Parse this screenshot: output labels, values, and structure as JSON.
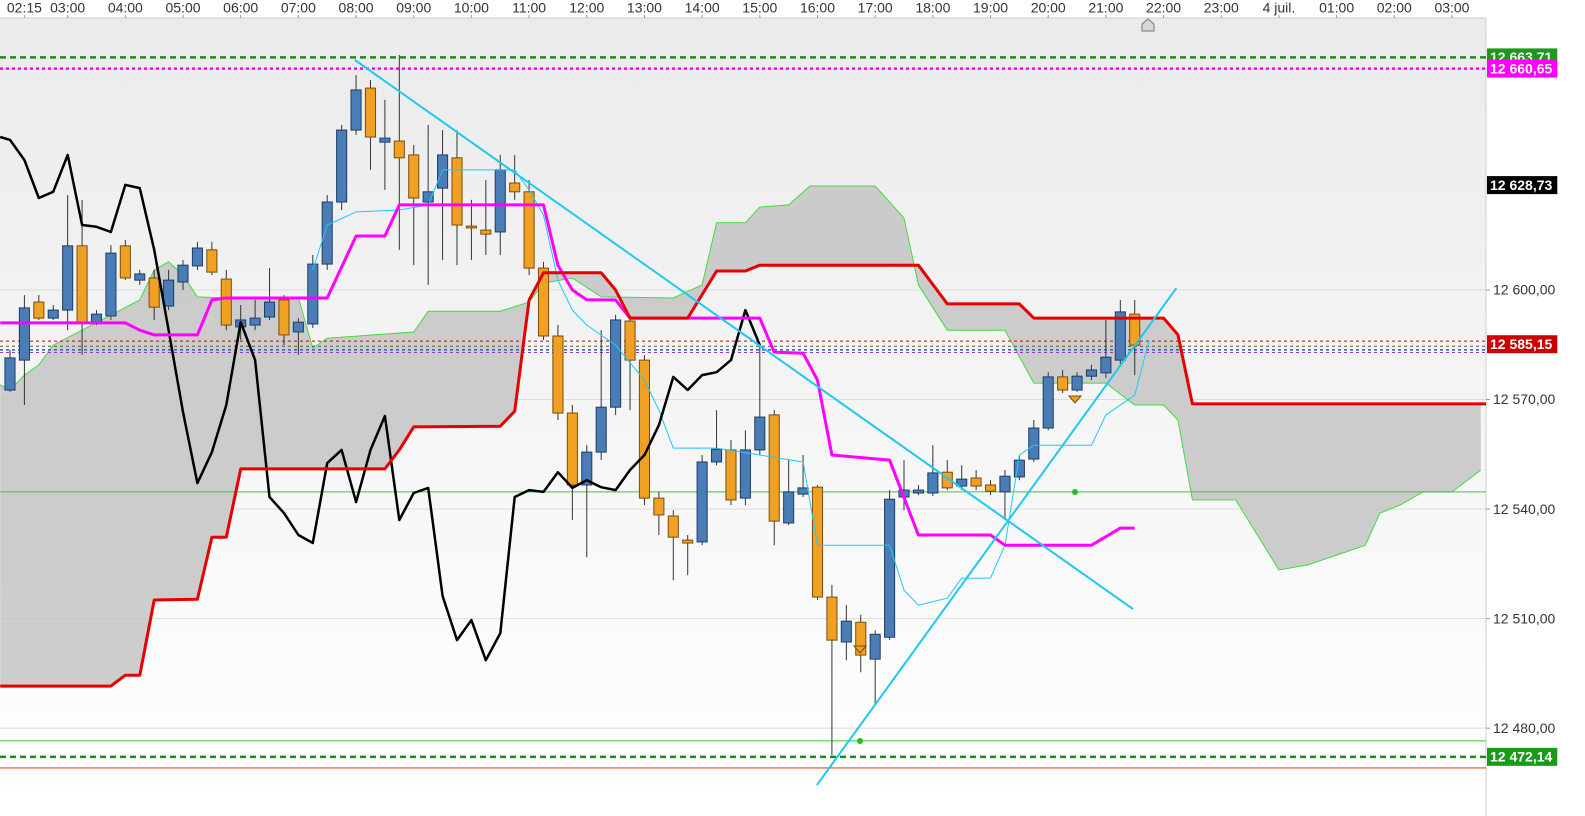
{
  "chart_data": {
    "type": "candlestick",
    "xlim": [
      1.827,
      27.59
    ],
    "ylim": [
      12458.4,
      12674.5
    ],
    "grid": true,
    "up_color": "#4a7db5",
    "down_color": "#f0a022",
    "up_outline": "#1e3d66",
    "down_outline": "#7a4e0c",
    "xticks": [
      {
        "value": 2.25,
        "label": "02:15"
      },
      {
        "value": 3,
        "label": "03:00"
      },
      {
        "value": 4,
        "label": "04:00"
      },
      {
        "value": 5,
        "label": "05:00"
      },
      {
        "value": 6,
        "label": "06:00"
      },
      {
        "value": 7,
        "label": "07:00"
      },
      {
        "value": 8,
        "label": "08:00"
      },
      {
        "value": 9,
        "label": "09:00"
      },
      {
        "value": 10,
        "label": "10:00"
      },
      {
        "value": 11,
        "label": "11:00"
      },
      {
        "value": 12,
        "label": "12:00"
      },
      {
        "value": 13,
        "label": "13:00"
      },
      {
        "value": 14,
        "label": "14:00"
      },
      {
        "value": 15,
        "label": "15:00"
      },
      {
        "value": 16,
        "label": "16:00"
      },
      {
        "value": 17,
        "label": "17:00"
      },
      {
        "value": 18,
        "label": "18:00"
      },
      {
        "value": 19,
        "label": "19:00"
      },
      {
        "value": 20,
        "label": "20:00"
      },
      {
        "value": 21,
        "label": "21:00"
      },
      {
        "value": 22,
        "label": "22:00"
      },
      {
        "value": 23,
        "label": "23:00"
      },
      {
        "value": 24,
        "label": "4 juil."
      },
      {
        "value": 25,
        "label": "01:00"
      },
      {
        "value": 26,
        "label": "02:00"
      },
      {
        "value": 27,
        "label": "03:00"
      }
    ],
    "yticks": [
      {
        "value": 12480,
        "label": "12 480,00"
      },
      {
        "value": 12510,
        "label": "12 510,00"
      },
      {
        "value": 12540,
        "label": "12 540,00"
      },
      {
        "value": 12570,
        "label": "12 570,00"
      },
      {
        "value": 12600,
        "label": "12 600,00"
      }
    ],
    "x": [
      2,
      2.25,
      2.5,
      2.75,
      3,
      3.25,
      3.5,
      3.75,
      4,
      4.25,
      4.5,
      4.75,
      5,
      5.25,
      5.5,
      5.75,
      6,
      6.25,
      6.5,
      6.75,
      7,
      7.25,
      7.5,
      7.75,
      8,
      8.25,
      8.5,
      8.75,
      9,
      9.25,
      9.5,
      9.75,
      10,
      10.25,
      10.5,
      10.75,
      11,
      11.25,
      11.5,
      11.75,
      12,
      12.25,
      12.5,
      12.75,
      13,
      13.25,
      13.5,
      13.75,
      14,
      14.25,
      14.5,
      14.75,
      15,
      15.25,
      15.5,
      15.75,
      16,
      16.25,
      16.5,
      16.75,
      17,
      17.25,
      17.5,
      17.75,
      18,
      18.25,
      18.5,
      18.75,
      19,
      19.25,
      19.5,
      19.75,
      20,
      20.25,
      20.5,
      20.75,
      21,
      21.25,
      21.5
    ],
    "open": [
      12572.6,
      12580.8,
      12596.7,
      12592.3,
      12594.5,
      12612.1,
      12591.2,
      12592.9,
      12612.1,
      12602.7,
      12603.3,
      12595.6,
      12602.2,
      12606.6,
      12611,
      12603,
      12589.9,
      12590.4,
      12592.6,
      12597.3,
      12588.5,
      12590.7,
      12607.1,
      12624.1,
      12643.8,
      12655.3,
      12640.5,
      12640.8,
      12637,
      12624.1,
      12627.9,
      12636.2,
      12617.5,
      12616.4,
      12615.9,
      12629.3,
      12626.9,
      12606,
      12587.4,
      12566.3,
      12546.6,
      12555.6,
      12567.9,
      12591.5,
      12580.8,
      12543,
      12538.1,
      12531.5,
      12531,
      12552.9,
      12556.2,
      12543,
      12556.2,
      12565.8,
      12536.2,
      12544.1,
      12546,
      12515.9,
      12503.6,
      12509,
      12498.9,
      12504.9,
      12543.3,
      12544.4,
      12544.4,
      12550.1,
      12546.3,
      12548.5,
      12546.6,
      12544.7,
      12548.8,
      12553.7,
      12562.2,
      12576.2,
      12572.6,
      12576.4,
      12577.3,
      12580.8,
      12593.4
    ],
    "high": [
      12583.6,
      12598.6,
      12598.6,
      12595.9,
      12626,
      12624.7,
      12594.5,
      12612.3,
      12613.7,
      12605.5,
      12605.5,
      12605.5,
      12608.2,
      12613.2,
      12613.2,
      12605.5,
      12595.9,
      12597.3,
      12606,
      12598.6,
      12592.3,
      12609.6,
      12626,
      12645.2,
      12658.9,
      12657.5,
      12652.1,
      12664.4,
      12639.7,
      12645.2,
      12643.8,
      12643.8,
      12624.7,
      12630.1,
      12637,
      12637,
      12630.1,
      12607.7,
      12590.4,
      12568.5,
      12557.5,
      12589,
      12593.2,
      12592.3,
      12582.2,
      12544.7,
      12539.7,
      12532.9,
      12554.8,
      12567.1,
      12558.9,
      12561.6,
      12584.9,
      12567.1,
      12553.4,
      12554.8,
      12546.6,
      12519.2,
      12513.7,
      12511,
      12506.8,
      12545.2,
      12553.4,
      12546.6,
      12557.5,
      12553.4,
      12552,
      12550.7,
      12547.9,
      12550.7,
      12554.8,
      12564.4,
      12577.5,
      12578.1,
      12577.5,
      12579.5,
      12591.8,
      12597.3,
      12597.3
    ],
    "low": [
      12572.1,
      12568.5,
      12591.8,
      12591.8,
      12589,
      12582.2,
      12590.4,
      12591.8,
      12602.7,
      12601.4,
      12591.8,
      12594.5,
      12600,
      12605.5,
      12604.1,
      12589,
      12586.3,
      12589,
      12591.8,
      12584.9,
      12582.2,
      12589.6,
      12605.5,
      12621.9,
      12642.5,
      12632.9,
      12627.4,
      12611,
      12606.8,
      12601.4,
      12608.2,
      12606.8,
      12608.2,
      12609.6,
      12609.6,
      12624.7,
      12604.1,
      12586.3,
      12564.4,
      12537,
      12526.8,
      12553.4,
      12565.8,
      12567.1,
      12541.1,
      12532.9,
      12520.5,
      12521.9,
      12530.1,
      12552,
      12541.1,
      12541.1,
      12554.8,
      12530.1,
      12535.6,
      12543.3,
      12515.1,
      12472.6,
      12498.6,
      12495.3,
      12486.3,
      12504.1,
      12539.7,
      12543.8,
      12543.6,
      12545.2,
      12545.2,
      12545.2,
      12543.8,
      12537,
      12547.9,
      12552.9,
      12561.6,
      12571.8,
      12572.1,
      12575.3,
      12575.9,
      12579.5,
      12576.7
    ],
    "close": [
      12581.4,
      12595.1,
      12592.3,
      12594.5,
      12612.1,
      12591.2,
      12593.4,
      12610.1,
      12603.3,
      12604.4,
      12595.3,
      12602.7,
      12606.8,
      12611.5,
      12604.9,
      12590.4,
      12591.8,
      12592.3,
      12596.7,
      12587.7,
      12591.2,
      12607.1,
      12624.1,
      12643.8,
      12654.8,
      12641.9,
      12641.6,
      12636.2,
      12625.2,
      12626.9,
      12637,
      12617.8,
      12617,
      12615.3,
      12632.9,
      12626.9,
      12606,
      12587.4,
      12566.3,
      12546.6,
      12555.6,
      12567.9,
      12591.8,
      12580.8,
      12543,
      12538.4,
      12532.3,
      12530.7,
      12552.9,
      12556.4,
      12542.5,
      12556.2,
      12565.2,
      12536.7,
      12544.7,
      12545.8,
      12515.9,
      12504.1,
      12509.3,
      12500,
      12505.7,
      12542.7,
      12545.2,
      12545.2,
      12549.9,
      12545.8,
      12548.2,
      12546.3,
      12544.9,
      12549,
      12553.4,
      12562.2,
      12576.2,
      12572.6,
      12576.4,
      12578.1,
      12581.6,
      12594,
      12584.9
    ],
    "cloud": {
      "color": "#c4c4c4",
      "line_color": "#3fdc3f",
      "span_a": {
        "x": [
          1.83,
          2,
          2.25,
          2.5,
          2.75,
          3.25,
          4.25,
          4.5,
          4.75,
          5,
          5.25,
          5.75,
          7,
          7.25,
          7.5,
          9,
          9.25,
          10.5,
          11,
          11.25,
          11.75,
          12.25,
          13.5,
          14,
          14.25,
          14.75,
          15,
          15.5,
          15.87,
          17,
          17.5,
          17.75,
          18.25,
          19.25,
          19.75,
          21,
          21.5,
          22,
          22.25,
          22.5,
          23.25,
          24,
          24.5,
          25,
          25.5,
          25.75,
          26.1,
          26.5,
          27,
          27.5
        ],
        "values": [
          12574,
          12572.6,
          12576.7,
          12579.5,
          12584.9,
          12589,
          12597.3,
          12605.5,
          12607.7,
          12604.1,
          12598.1,
          12597.8,
          12597.8,
          12584.1,
          12586.8,
          12588.5,
          12594.2,
          12594.2,
          12596.7,
          12601.9,
          12603.3,
          12598.1,
          12597.8,
          12601.4,
          12618.4,
          12618.4,
          12622.7,
          12623.3,
          12628.5,
          12628.5,
          12619.7,
          12601.4,
          12589,
          12589,
          12574.5,
          12574.5,
          12568.5,
          12568.5,
          12564.4,
          12542.5,
          12542.5,
          12523.3,
          12524.7,
          12527.4,
          12530.1,
          12538.9,
          12541.1,
          12544.7,
          12544.7,
          12550.7
        ]
      },
      "span_b": {
        "x": [
          1.83,
          3.75,
          4,
          4.25,
          4.5,
          5.25,
          5.5,
          5.75,
          6,
          8.5,
          8.75,
          9,
          10.5,
          10.75,
          11,
          11.25,
          12.25,
          12.5,
          12.75,
          13.75,
          14.25,
          14.75,
          15,
          17.75,
          18.25,
          19.5,
          19.75,
          22,
          22.25,
          22.5,
          27.5
        ],
        "values": [
          12491.5,
          12491.5,
          12494.5,
          12494.5,
          12515.1,
          12515.3,
          12532.3,
          12532.3,
          12551,
          12551,
          12556.2,
          12562.5,
          12562.7,
          12566.8,
          12597.3,
          12604.7,
          12604.7,
          12600,
          12592.3,
          12592.3,
          12605.2,
          12605.2,
          12606.8,
          12606.8,
          12596.2,
          12596.2,
          12592.3,
          12592.3,
          12587.7,
          12568.8,
          12568.8
        ]
      }
    },
    "overlays": [
      {
        "type": "line",
        "color": "#1ec8ff",
        "width": 1,
        "x": [
          7.25,
          7.5,
          8,
          8.75,
          9.25,
          9.5,
          10.75,
          11,
          11.25,
          11.5,
          11.75,
          12,
          12.5,
          13,
          13.25,
          13.5,
          14.25,
          15,
          15.75,
          16,
          17.25,
          17.5,
          17.75,
          18.25,
          18.5,
          19,
          19.25,
          19.5,
          19.75,
          20.75,
          21,
          21.5,
          21.75
        ],
        "values": [
          12605.5,
          12617.8,
          12621.4,
          12621.9,
          12623.3,
          12632.9,
          12632.9,
          12627.4,
          12620.5,
          12602.7,
          12594.5,
          12590.4,
          12584.9,
          12575.3,
          12567.1,
          12556.7,
          12556.7,
          12554.8,
          12552.9,
          12530.1,
          12530.1,
          12517.8,
          12513.7,
          12515.6,
          12521.1,
          12521.1,
          12530.1,
          12554.8,
          12557.5,
          12557.5,
          12565.8,
          12571.2,
          12586.3
        ]
      },
      {
        "type": "line",
        "color": "#000000",
        "width": 2.5,
        "x": [
          1.83,
          2,
          2.25,
          2.5,
          2.75,
          3,
          3.25,
          3.5,
          3.75,
          4,
          4.25,
          4.5,
          4.75,
          5,
          5.25,
          5.5,
          5.75,
          6,
          6.25,
          6.5,
          6.75,
          7,
          7.25,
          7.5,
          7.75,
          8,
          8.25,
          8.5,
          8.75,
          9,
          9.25,
          9.5,
          9.75,
          10,
          10.25,
          10.5,
          10.75,
          11,
          11.25,
          11.5,
          11.75,
          12,
          12.25,
          12.5,
          12.75,
          13,
          13.25,
          13.5,
          13.75,
          14,
          14.25,
          14.5,
          14.75,
          15
        ],
        "values": [
          12641.9,
          12641.1,
          12635.6,
          12625.2,
          12626.9,
          12637,
          12617.8,
          12617.3,
          12615.9,
          12628.8,
          12627.9,
          12611,
          12589,
          12566.6,
          12547.1,
          12555.6,
          12568.5,
          12591.2,
          12580.8,
          12543.3,
          12538.9,
          12532.9,
          12530.7,
          12552.6,
          12556.2,
          12541.9,
          12556.2,
          12565.5,
          12537,
          12544.4,
          12545.8,
          12516.2,
          12504.1,
          12509.6,
          12498.6,
          12506,
          12543.3,
          12545.2,
          12544.7,
          12550.1,
          12545.8,
          12547.9,
          12546,
          12545.2,
          12550.7,
          12554.8,
          12563,
          12576.2,
          12572.6,
          12576.7,
          12577.5,
          12580.8,
          12594.5,
          12584.9
        ]
      },
      {
        "type": "line",
        "color": "#ff00ff",
        "width": 3,
        "x": [
          1.83,
          4,
          4.25,
          4.5,
          5.25,
          5.5,
          5.75,
          7.5,
          8,
          8.5,
          8.75,
          11.25,
          11.5,
          11.75,
          12,
          12.5,
          12.75,
          15,
          15.25,
          15.75,
          16,
          16.25,
          17.25,
          17.75,
          19,
          19.25,
          20.75,
          21.25,
          21.5
        ],
        "values": [
          12591,
          12591,
          12589,
          12587.7,
          12587.7,
          12597.3,
          12597.8,
          12597.8,
          12614.8,
          12614.8,
          12623.3,
          12623.3,
          12606.8,
          12600,
          12597.3,
          12597.3,
          12592.3,
          12592.3,
          12583,
          12582.7,
          12575.3,
          12554.8,
          12553.4,
          12532.9,
          12532.9,
          12530.1,
          12530.1,
          12534.8,
          12534.8
        ]
      },
      {
        "type": "line",
        "color": "#e60000",
        "width": 3,
        "x": [
          1.83,
          3.75,
          4,
          4.25,
          4.5,
          5.25,
          5.5,
          5.75,
          6,
          8.5,
          8.75,
          9,
          10.5,
          10.75,
          11,
          11.25,
          12.25,
          12.5,
          12.75,
          13.75,
          14.25,
          14.75,
          15,
          17.75,
          18.25,
          19.5,
          19.75,
          22,
          22.25,
          22.5,
          27.59
        ],
        "values": [
          12491.5,
          12491.5,
          12494.5,
          12494.5,
          12515.1,
          12515.3,
          12532.3,
          12532.3,
          12551,
          12551,
          12556.2,
          12562.5,
          12562.7,
          12566.8,
          12597.3,
          12604.7,
          12604.7,
          12600,
          12592.3,
          12592.3,
          12605.2,
          12605.2,
          12606.8,
          12606.8,
          12596.2,
          12596.2,
          12592.3,
          12592.3,
          12587.7,
          12568.8,
          12568.8
        ]
      }
    ],
    "trendlines": [
      {
        "color": "#1ec8f0",
        "width": 2,
        "x": [
          7.98,
          21.47
        ],
        "values": [
          12663,
          12512.6
        ]
      },
      {
        "color": "#1ec8f0",
        "width": 2,
        "x": [
          15.99,
          22.22
        ],
        "values": [
          12464.4,
          12600.5
        ]
      }
    ],
    "levels": [
      {
        "value": 12663.71,
        "color": "#1f8a1f",
        "style": "dashed",
        "width": 2.5
      },
      {
        "value": 12660.65,
        "color": "#ff00ff",
        "style": "dotted",
        "width": 2.5
      },
      {
        "value": 12472.14,
        "color": "#1f8a1f",
        "style": "dashed",
        "width": 2.5
      },
      {
        "value": 12544.7,
        "color": "#33cc33",
        "style": "solid",
        "width": 1
      },
      {
        "value": 12476.5,
        "color": "#33cc33",
        "style": "solid",
        "width": 1
      },
      {
        "value": 12469.1,
        "color": "#e8501a",
        "style": "solid",
        "width": 1.2
      },
      {
        "value": 12586,
        "color": "#cc0000",
        "style": "dotted",
        "width": 1
      },
      {
        "value": 12584.6,
        "color": "#555555",
        "style": "dotted",
        "width": 1
      },
      {
        "value": 12583.6,
        "color": "#3355cc",
        "style": "dotted",
        "width": 1.5
      },
      {
        "value": 12582.9,
        "color": "#9933cc",
        "style": "dotted",
        "width": 1
      }
    ],
    "price_labels": [
      {
        "value": 12663.71,
        "label": "12 663,71",
        "color": "#1a9a1a",
        "text_color": "#ffffff"
      },
      {
        "value": 12660.65,
        "label": "12 660,65",
        "color": "#ff00ff",
        "text_color": "#ffffff"
      },
      {
        "value": 12628.73,
        "label": "12 628,73",
        "color": "#000000",
        "text_color": "#ffffff"
      },
      {
        "value": 12585.15,
        "label": "12 585,15",
        "color": "#cc0000",
        "text_color": "#ffffff"
      },
      {
        "value": 12472.14,
        "label": "12 472,14",
        "color": "#1a9a1a",
        "text_color": "#ffffff"
      }
    ]
  }
}
